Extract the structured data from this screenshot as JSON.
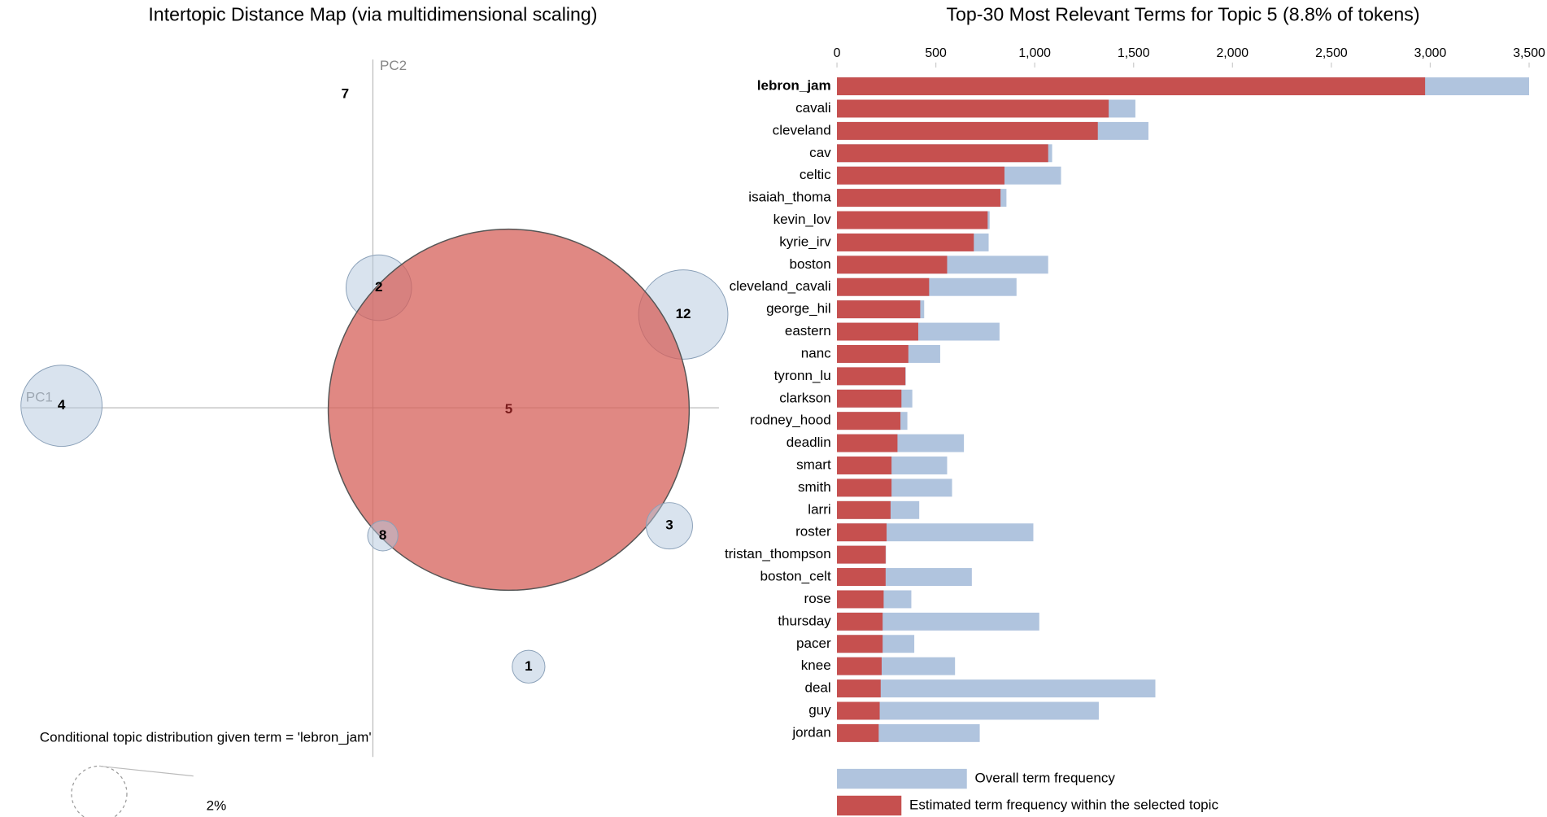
{
  "chart_data": [
    {
      "type": "bubble",
      "title": "Intertopic Distance Map (via multidimensional scaling)",
      "x_label": "PC1",
      "y_label": "PC2",
      "xlim": [
        -3.54,
        3.49
      ],
      "ylim": [
        -3.52,
        3.51
      ],
      "categories": [
        "7",
        "2",
        "12",
        "4",
        "5",
        "8",
        "3",
        "1"
      ],
      "x": [
        -0.28,
        0.06,
        3.13,
        -3.14,
        1.37,
        0.1,
        2.99,
        1.57
      ],
      "y": [
        3.16,
        1.21,
        0.94,
        0.02,
        -0.02,
        -1.29,
        -1.19,
        -2.61
      ],
      "sizes": [
        0,
        2.8,
        5.2,
        4.3,
        85,
        0.6,
        1.4,
        0.7
      ],
      "color": "#b4c8de",
      "highlight": "5",
      "highlight_color": "#d6605a",
      "legend_title": "Conditional topic distribution given term = 'lebron_jam'",
      "legend_sizes": [
        {
          "value": 2,
          "label": "2%"
        }
      ]
    },
    {
      "type": "hbar",
      "title": "Top-30 Most Relevant Terms for Topic 5 (8.8% of tokens)",
      "categories": [
        "lebron_jam",
        "cavali",
        "cleveland",
        "cav",
        "celtic",
        "isaiah_thoma",
        "kevin_lov",
        "kyrie_irv",
        "boston",
        "cleveland_cavali",
        "george_hil",
        "eastern",
        "nanc",
        "tyronn_lu",
        "clarkson",
        "rodney_hood",
        "deadlin",
        "smart",
        "smith",
        "larri",
        "roster",
        "tristan_thompson",
        "boston_celt",
        "rose",
        "thursday",
        "pacer",
        "knee",
        "deal",
        "guy",
        "jordan"
      ],
      "selected_category": "lebron_jam",
      "series": [
        {
          "name": "Overall term frequency",
          "color": "#b0c4de",
          "values": [
            3500,
            1509,
            1575,
            1088,
            1133,
            857,
            772,
            767,
            1068,
            908,
            441,
            822,
            522,
            348,
            381,
            356,
            642,
            557,
            582,
            416,
            993,
            248,
            682,
            376,
            1023,
            391,
            597,
            1610,
            1324,
            722
          ]
        },
        {
          "name": "Estimated term frequency within the selected topic",
          "color": "#c6504f",
          "values": [
            2974,
            1374,
            1319,
            1068,
            847,
            827,
            762,
            692,
            557,
            466,
            421,
            411,
            361,
            346,
            326,
            321,
            306,
            276,
            276,
            271,
            251,
            246,
            246,
            236,
            231,
            231,
            226,
            221,
            216,
            211
          ]
        }
      ],
      "xlim": [
        0,
        3500
      ],
      "xticks": [
        0,
        500,
        {
          "value": 1000,
          "label": "1,000"
        },
        {
          "value": 1500,
          "label": "1,500"
        },
        {
          "value": 2000,
          "label": "2,000"
        },
        {
          "value": 2500,
          "label": "2,500"
        },
        {
          "value": 3000,
          "label": "3,000"
        },
        {
          "value": 3500,
          "label": "3,500"
        }
      ]
    }
  ]
}
